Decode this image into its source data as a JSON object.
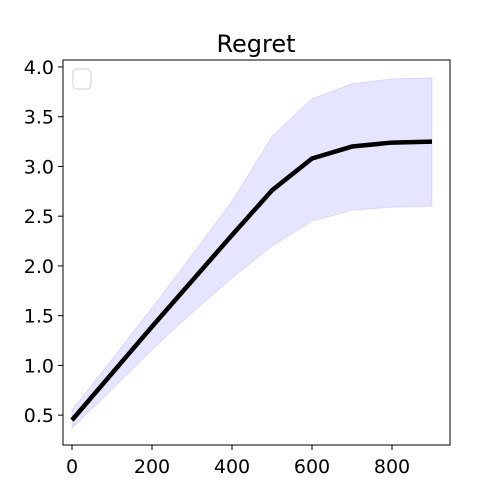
{
  "chart_data": {
    "type": "line",
    "title": "Regret",
    "xlabel": "",
    "ylabel": "",
    "xlim": [
      -22.5,
      945
    ],
    "ylim": [
      0.2,
      4.07
    ],
    "x_ticks": [
      0,
      200,
      400,
      600,
      800
    ],
    "x_tick_labels": [
      "0",
      "200",
      "400",
      "600",
      "800"
    ],
    "y_ticks": [
      0.5,
      1.0,
      1.5,
      2.0,
      2.5,
      3.0,
      3.5,
      4.0
    ],
    "y_tick_labels": [
      "0.5",
      "1.0",
      "1.5",
      "2.0",
      "2.5",
      "3.0",
      "3.5",
      "4.0"
    ],
    "grid": false,
    "legend": {
      "placement": "top-left",
      "entries": []
    },
    "series": [
      {
        "x": [
          0,
          100,
          200,
          300,
          400,
          500,
          600,
          700,
          800,
          900
        ],
        "values": [
          0.45,
          0.92,
          1.39,
          1.85,
          2.31,
          2.76,
          3.08,
          3.2,
          3.24,
          3.25
        ],
        "band_upper": [
          0.55,
          1.06,
          1.58,
          2.11,
          2.65,
          3.3,
          3.68,
          3.83,
          3.88,
          3.89
        ],
        "band_lower": [
          0.37,
          0.76,
          1.16,
          1.53,
          1.88,
          2.2,
          2.45,
          2.56,
          2.59,
          2.6
        ],
        "line_color": "#000000",
        "band_color": "#0000ff"
      }
    ]
  }
}
